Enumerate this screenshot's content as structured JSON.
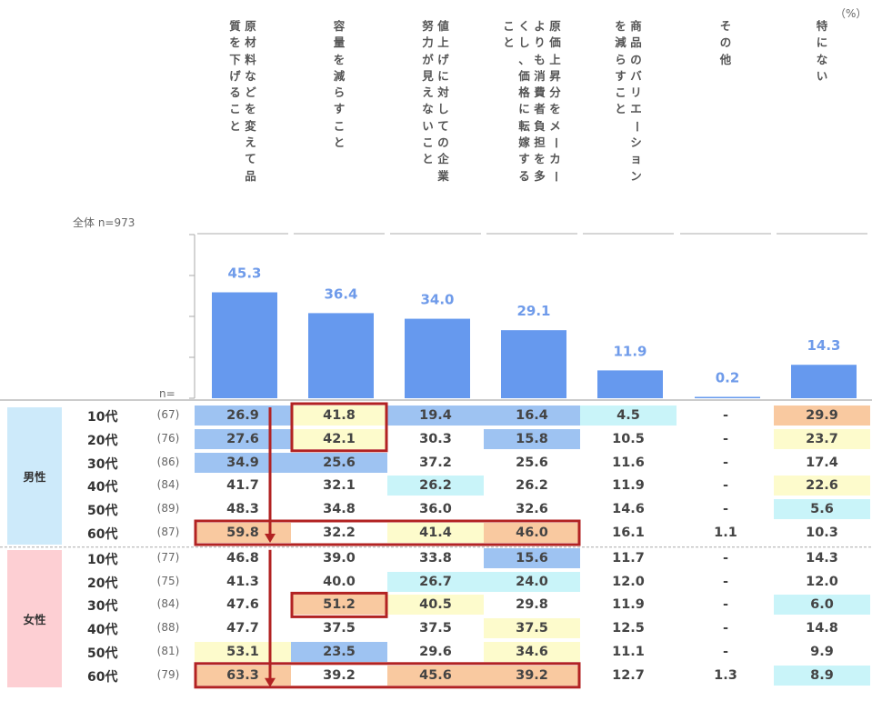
{
  "unit_label": "（%）",
  "total_label": "全体 n=973",
  "n_label": "n=",
  "categories": [
    "原材料などを変えて品質を下げること",
    "容量を減らすこと",
    "値上げに対しての企業努力が見えないこと",
    "原価上昇分をメーカーよりも消費者負担を多くし、価格に転嫁すること",
    "商品のバリエーションを減らすこと",
    "その他",
    "特にない"
  ],
  "header_columns": [
    [
      [
        "原",
        "材",
        "料",
        "な",
        "ど",
        "を",
        "変",
        "え",
        "て",
        "品"
      ],
      [
        "質",
        "を",
        "下",
        "げ",
        "る",
        "こ",
        "と"
      ]
    ],
    [
      [
        "容",
        "量",
        "を",
        "減",
        "ら",
        "す",
        "こ",
        "と"
      ]
    ],
    [
      [
        "値",
        "上",
        "げ",
        "に",
        "対",
        "し",
        "て",
        "の",
        "企",
        "業"
      ],
      [
        "努",
        "力",
        "が",
        "見",
        "え",
        "な",
        "い",
        "こ",
        "と"
      ]
    ],
    [
      [
        "原",
        "価",
        "上",
        "昇",
        "分",
        "を",
        "メ",
        "ー",
        "カ",
        "ー"
      ],
      [
        "よ",
        "り",
        "も",
        "消",
        "費",
        "者",
        "負",
        "担",
        "を",
        "多"
      ],
      [
        "く",
        "し",
        "、",
        "価",
        "格",
        "に",
        "転",
        "嫁",
        "す",
        "る"
      ],
      [
        "こ",
        "と"
      ]
    ],
    [
      [
        "商",
        "品",
        "の",
        "バ",
        "リ",
        "エ",
        "ー",
        "シ",
        "ョ",
        "ン"
      ],
      [
        "を",
        "減",
        "ら",
        "す",
        "こ",
        "と"
      ]
    ],
    [
      [
        "そ",
        "の",
        "他"
      ]
    ],
    [
      [
        "特",
        "に",
        "な",
        "い"
      ]
    ]
  ],
  "colors": {
    "bar": "#6699ee",
    "bar_label": "#6f9bea",
    "blue_dark": "#9ec3f2",
    "blue_light": "#c9f4f9",
    "orange": "#f9c9a0",
    "yellow": "#fdfbcc",
    "male_label_bg": "#cdeafa",
    "female_label_bg": "#fdcfd3",
    "highlight": "#b22222"
  },
  "chart_data": {
    "type": "bar",
    "categories": [
      "原材料などを変えて品質を下げること",
      "容量を減らすこと",
      "値上げに対しての企業努力が見えないこと",
      "原価上昇分をメーカーよりも消費者負担を多くし、価格に転嫁すること",
      "商品のバリエーションを減らすこと",
      "その他",
      "特にない"
    ],
    "values": [
      45.3,
      36.4,
      34.0,
      29.1,
      11.9,
      0.2,
      14.3
    ],
    "ylim": [
      0,
      70
    ]
  },
  "table": {
    "groups": [
      {
        "label": "男性",
        "rows": [
          {
            "age": "10代",
            "n": "(67)",
            "values": [
              "26.9",
              "41.8",
              "19.4",
              "16.4",
              "4.5",
              "-",
              "29.9"
            ],
            "fills": [
              "blue_dark",
              "yellow",
              "blue_dark",
              "blue_dark",
              "blue_light",
              "",
              "orange"
            ]
          },
          {
            "age": "20代",
            "n": "(76)",
            "values": [
              "27.6",
              "42.1",
              "30.3",
              "15.8",
              "10.5",
              "-",
              "23.7"
            ],
            "fills": [
              "blue_dark",
              "yellow",
              "",
              "blue_dark",
              "",
              "",
              "yellow"
            ]
          },
          {
            "age": "30代",
            "n": "(86)",
            "values": [
              "34.9",
              "25.6",
              "37.2",
              "25.6",
              "11.6",
              "-",
              "17.4"
            ],
            "fills": [
              "blue_dark",
              "blue_dark",
              "",
              "",
              "",
              "",
              ""
            ]
          },
          {
            "age": "40代",
            "n": "(84)",
            "values": [
              "41.7",
              "32.1",
              "26.2",
              "26.2",
              "11.9",
              "-",
              "22.6"
            ],
            "fills": [
              "",
              "",
              "blue_light",
              "",
              "",
              "",
              "yellow"
            ]
          },
          {
            "age": "50代",
            "n": "(89)",
            "values": [
              "48.3",
              "34.8",
              "36.0",
              "32.6",
              "14.6",
              "-",
              "5.6"
            ],
            "fills": [
              "",
              "",
              "",
              "",
              "",
              "",
              "blue_light"
            ]
          },
          {
            "age": "60代",
            "n": "(87)",
            "values": [
              "59.8",
              "32.2",
              "41.4",
              "46.0",
              "16.1",
              "1.1",
              "10.3"
            ],
            "fills": [
              "orange",
              "",
              "yellow",
              "orange",
              "",
              "",
              ""
            ]
          }
        ]
      },
      {
        "label": "女性",
        "rows": [
          {
            "age": "10代",
            "n": "(77)",
            "values": [
              "46.8",
              "39.0",
              "33.8",
              "15.6",
              "11.7",
              "-",
              "14.3"
            ],
            "fills": [
              "",
              "",
              "",
              "blue_dark",
              "",
              "",
              ""
            ]
          },
          {
            "age": "20代",
            "n": "(75)",
            "values": [
              "41.3",
              "40.0",
              "26.7",
              "24.0",
              "12.0",
              "-",
              "12.0"
            ],
            "fills": [
              "",
              "",
              "blue_light",
              "blue_light",
              "",
              "",
              ""
            ]
          },
          {
            "age": "30代",
            "n": "(84)",
            "values": [
              "47.6",
              "51.2",
              "40.5",
              "29.8",
              "11.9",
              "-",
              "6.0"
            ],
            "fills": [
              "",
              "orange",
              "yellow",
              "",
              "",
              "",
              "blue_light"
            ]
          },
          {
            "age": "40代",
            "n": "(88)",
            "values": [
              "47.7",
              "37.5",
              "37.5",
              "37.5",
              "12.5",
              "-",
              "14.8"
            ],
            "fills": [
              "",
              "",
              "",
              "yellow",
              "",
              "",
              ""
            ]
          },
          {
            "age": "50代",
            "n": "(81)",
            "values": [
              "53.1",
              "23.5",
              "29.6",
              "34.6",
              "11.1",
              "-",
              "9.9"
            ],
            "fills": [
              "yellow",
              "blue_dark",
              "",
              "yellow",
              "",
              "",
              ""
            ]
          },
          {
            "age": "60代",
            "n": "(79)",
            "values": [
              "63.3",
              "39.2",
              "45.6",
              "39.2",
              "12.7",
              "1.3",
              "8.9"
            ],
            "fills": [
              "orange",
              "",
              "orange",
              "orange",
              "",
              "",
              "blue_light"
            ]
          }
        ]
      }
    ]
  }
}
